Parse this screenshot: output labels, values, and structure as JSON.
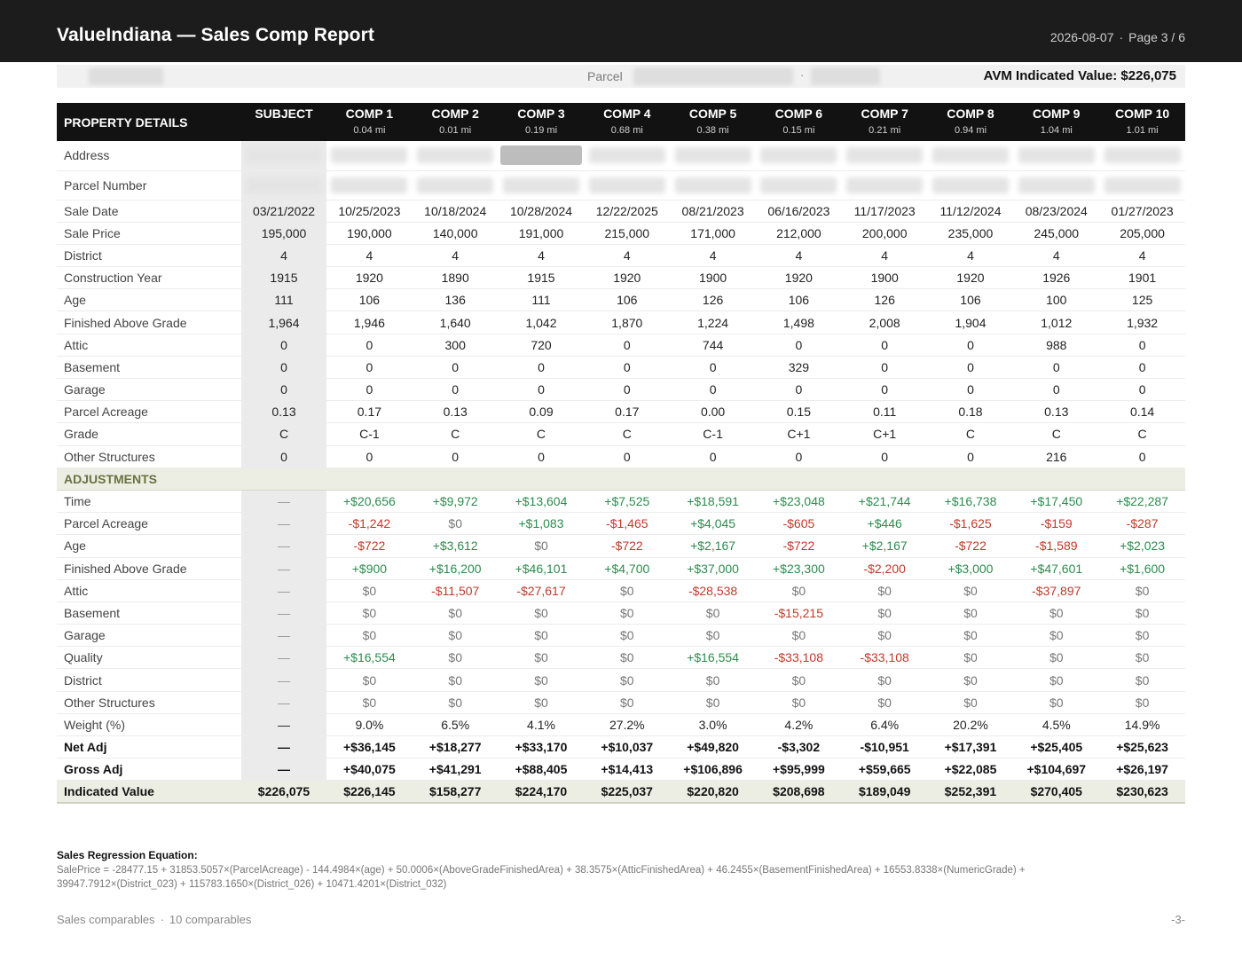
{
  "header": {
    "title": "ValueIndiana — Sales Comp Report",
    "date": "2026-08-07",
    "separator": "·",
    "page": "Page 3 / 6"
  },
  "parcel_bar": {
    "parcel_label": "Parcel",
    "dot": "·",
    "avm_label": "AVM Indicated Value: $226,075"
  },
  "table": {
    "corner_label": "PROPERTY DETAILS",
    "columns": [
      {
        "name": "SUBJECT",
        "distance": ""
      },
      {
        "name": "COMP 1",
        "distance": "0.04 mi"
      },
      {
        "name": "COMP 2",
        "distance": "0.01 mi"
      },
      {
        "name": "COMP 3",
        "distance": "0.19 mi"
      },
      {
        "name": "COMP 4",
        "distance": "0.68 mi"
      },
      {
        "name": "COMP 5",
        "distance": "0.38 mi"
      },
      {
        "name": "COMP 6",
        "distance": "0.15 mi"
      },
      {
        "name": "COMP 7",
        "distance": "0.21 mi"
      },
      {
        "name": "COMP 8",
        "distance": "0.94 mi"
      },
      {
        "name": "COMP 9",
        "distance": "1.04 mi"
      },
      {
        "name": "COMP 10",
        "distance": "1.01 mi"
      }
    ],
    "redacted_rows": [
      "Address",
      "Parcel Number"
    ],
    "detail_rows": [
      {
        "label": "Sale Date",
        "values": [
          "03/21/2022",
          "10/25/2023",
          "10/18/2024",
          "10/28/2024",
          "12/22/2025",
          "08/21/2023",
          "06/16/2023",
          "11/17/2023",
          "11/12/2024",
          "08/23/2024",
          "01/27/2023"
        ]
      },
      {
        "label": "Sale Price",
        "values": [
          "195,000",
          "190,000",
          "140,000",
          "191,000",
          "215,000",
          "171,000",
          "212,000",
          "200,000",
          "235,000",
          "245,000",
          "205,000"
        ]
      },
      {
        "label": "District",
        "values": [
          "4",
          "4",
          "4",
          "4",
          "4",
          "4",
          "4",
          "4",
          "4",
          "4",
          "4"
        ]
      },
      {
        "label": "Construction Year",
        "values": [
          "1915",
          "1920",
          "1890",
          "1915",
          "1920",
          "1900",
          "1920",
          "1900",
          "1920",
          "1926",
          "1901"
        ]
      },
      {
        "label": "Age",
        "values": [
          "111",
          "106",
          "136",
          "111",
          "106",
          "126",
          "106",
          "126",
          "106",
          "100",
          "125"
        ]
      },
      {
        "label": "Finished Above Grade",
        "values": [
          "1,964",
          "1,946",
          "1,640",
          "1,042",
          "1,870",
          "1,224",
          "1,498",
          "2,008",
          "1,904",
          "1,012",
          "1,932"
        ]
      },
      {
        "label": "Attic",
        "values": [
          "0",
          "0",
          "300",
          "720",
          "0",
          "744",
          "0",
          "0",
          "0",
          "988",
          "0"
        ]
      },
      {
        "label": "Basement",
        "values": [
          "0",
          "0",
          "0",
          "0",
          "0",
          "0",
          "329",
          "0",
          "0",
          "0",
          "0"
        ]
      },
      {
        "label": "Garage",
        "values": [
          "0",
          "0",
          "0",
          "0",
          "0",
          "0",
          "0",
          "0",
          "0",
          "0",
          "0"
        ]
      },
      {
        "label": "Parcel Acreage",
        "values": [
          "0.13",
          "0.17",
          "0.13",
          "0.09",
          "0.17",
          "0.00",
          "0.15",
          "0.11",
          "0.18",
          "0.13",
          "0.14"
        ]
      },
      {
        "label": "Grade",
        "values": [
          "C",
          "C-1",
          "C",
          "C",
          "C",
          "C-1",
          "C+1",
          "C+1",
          "C",
          "C",
          "C"
        ]
      },
      {
        "label": "Other Structures",
        "values": [
          "0",
          "0",
          "0",
          "0",
          "0",
          "0",
          "0",
          "0",
          "0",
          "216",
          "0"
        ]
      }
    ],
    "adjustments_label": "ADJUSTMENTS",
    "adjustment_rows": [
      {
        "label": "Time",
        "values": [
          "—",
          "+$20,656",
          "+$9,972",
          "+$13,604",
          "+$7,525",
          "+$18,591",
          "+$23,048",
          "+$21,744",
          "+$16,738",
          "+$17,450",
          "+$22,287"
        ]
      },
      {
        "label": "Parcel Acreage",
        "values": [
          "—",
          "-$1,242",
          "$0",
          "+$1,083",
          "-$1,465",
          "+$4,045",
          "-$605",
          "+$446",
          "-$1,625",
          "-$159",
          "-$287"
        ]
      },
      {
        "label": "Age",
        "values": [
          "—",
          "-$722",
          "+$3,612",
          "$0",
          "-$722",
          "+$2,167",
          "-$722",
          "+$2,167",
          "-$722",
          "-$1,589",
          "+$2,023"
        ]
      },
      {
        "label": "Finished Above Grade",
        "values": [
          "—",
          "+$900",
          "+$16,200",
          "+$46,101",
          "+$4,700",
          "+$37,000",
          "+$23,300",
          "-$2,200",
          "+$3,000",
          "+$47,601",
          "+$1,600"
        ]
      },
      {
        "label": "Attic",
        "values": [
          "—",
          "$0",
          "-$11,507",
          "-$27,617",
          "$0",
          "-$28,538",
          "$0",
          "$0",
          "$0",
          "-$37,897",
          "$0"
        ]
      },
      {
        "label": "Basement",
        "values": [
          "—",
          "$0",
          "$0",
          "$0",
          "$0",
          "$0",
          "-$15,215",
          "$0",
          "$0",
          "$0",
          "$0"
        ]
      },
      {
        "label": "Garage",
        "values": [
          "—",
          "$0",
          "$0",
          "$0",
          "$0",
          "$0",
          "$0",
          "$0",
          "$0",
          "$0",
          "$0"
        ]
      },
      {
        "label": "Quality",
        "values": [
          "—",
          "+$16,554",
          "$0",
          "$0",
          "$0",
          "+$16,554",
          "-$33,108",
          "-$33,108",
          "$0",
          "$0",
          "$0"
        ]
      },
      {
        "label": "District",
        "values": [
          "—",
          "$0",
          "$0",
          "$0",
          "$0",
          "$0",
          "$0",
          "$0",
          "$0",
          "$0",
          "$0"
        ]
      },
      {
        "label": "Other Structures",
        "values": [
          "—",
          "$0",
          "$0",
          "$0",
          "$0",
          "$0",
          "$0",
          "$0",
          "$0",
          "$0",
          "$0"
        ]
      }
    ],
    "weight_row": {
      "label": "Weight (%)",
      "values": [
        "—",
        "9.0%",
        "6.5%",
        "4.1%",
        "27.2%",
        "3.0%",
        "4.2%",
        "6.4%",
        "20.2%",
        "4.5%",
        "14.9%"
      ]
    },
    "net_adj_row": {
      "label": "Net Adj",
      "values": [
        "—",
        "+$36,145",
        "+$18,277",
        "+$33,170",
        "+$10,037",
        "+$49,820",
        "-$3,302",
        "-$10,951",
        "+$17,391",
        "+$25,405",
        "+$25,623"
      ]
    },
    "gross_adj_row": {
      "label": "Gross Adj",
      "values": [
        "—",
        "+$40,075",
        "+$41,291",
        "+$88,405",
        "+$14,413",
        "+$106,896",
        "+$95,999",
        "+$59,665",
        "+$22,085",
        "+$104,697",
        "+$26,197"
      ]
    },
    "indicated_row": {
      "label": "Indicated Value",
      "values": [
        "$226,075",
        "$226,145",
        "$158,277",
        "$224,170",
        "$225,037",
        "$220,820",
        "$208,698",
        "$189,049",
        "$252,391",
        "$270,405",
        "$230,623"
      ]
    }
  },
  "equation": {
    "heading": "Sales Regression Equation:",
    "line1": "SalePrice = -28477.15 + 31853.5057×(ParcelAcreage) - 144.4984×(age) + 50.0006×(AboveGradeFinishedArea) + 38.3575×(AtticFinishedArea) + 46.2455×(BasementFinishedArea) + 16553.8338×(NumericGrade) +",
    "line2": "39947.7912×(District_023) + 115783.1650×(District_026) + 10471.4201×(District_032)"
  },
  "footer": {
    "left_a": "Sales comparables",
    "separator": "·",
    "left_b": "10 comparables",
    "page_number": "-3-"
  },
  "colors": {
    "positive": "#2e8b4e",
    "negative": "#c0392b",
    "header_bg": "#121212",
    "section_bg": "#eceee4",
    "section_text": "#6a7240"
  }
}
